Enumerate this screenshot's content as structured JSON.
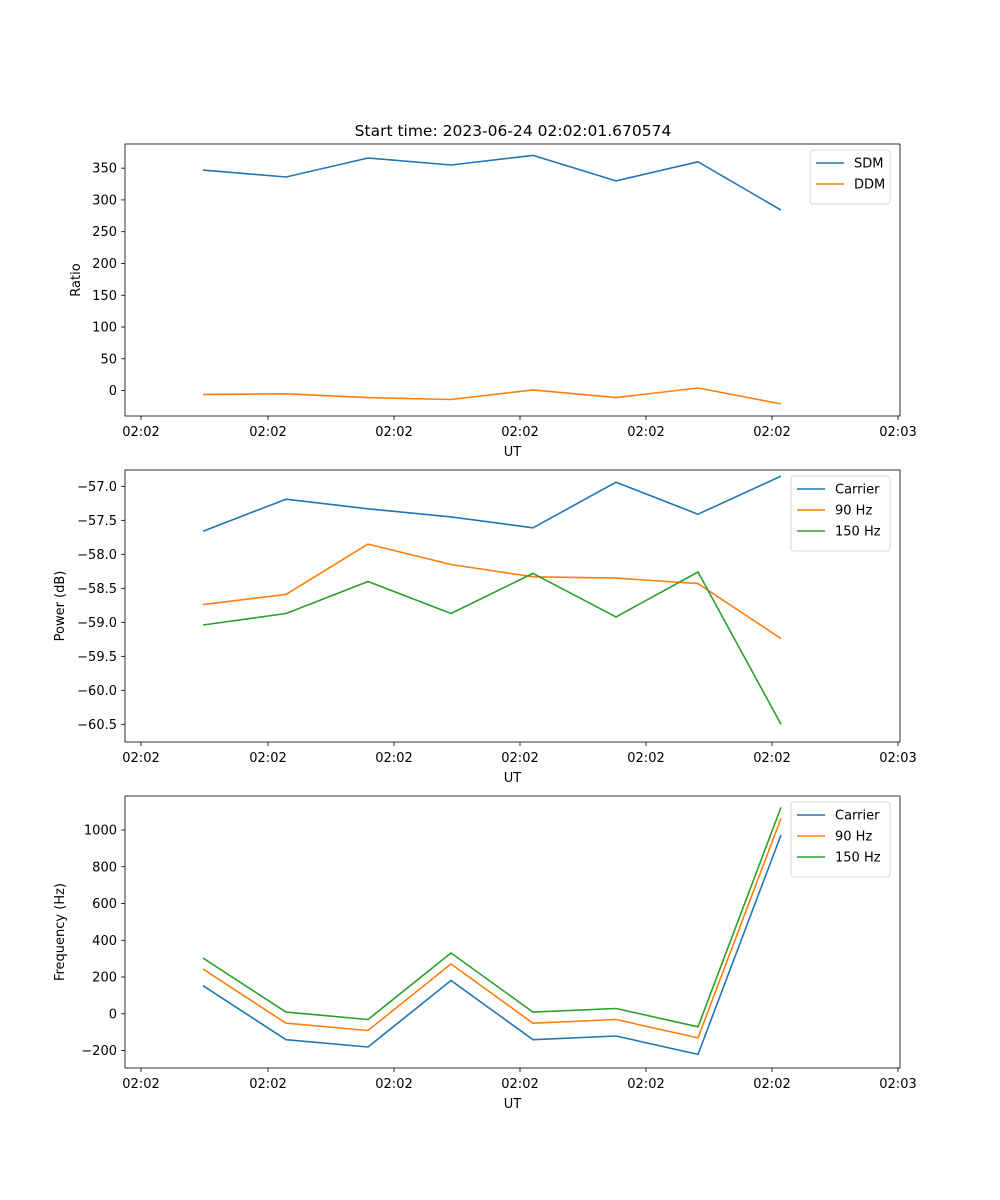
{
  "figure": {
    "title": "Start time: 2023-06-24 02:02:01.670574"
  },
  "chart_data": [
    {
      "type": "line",
      "xlabel": "UT",
      "ylabel": "Ratio",
      "x_tick_labels": [
        "02:02",
        "02:02",
        "02:02",
        "02:02",
        "02:02",
        "02:02",
        "02:03"
      ],
      "ylim": [
        -40,
        388
      ],
      "y_ticks": [
        0,
        50,
        100,
        150,
        200,
        250,
        300,
        350
      ],
      "legend_position": "top-right",
      "series": [
        {
          "name": "SDM",
          "color": "#1f77b4",
          "values": [
            347,
            336,
            366,
            355,
            370,
            330,
            360,
            284
          ]
        },
        {
          "name": "DDM",
          "color": "#ff7f0e",
          "values": [
            -6,
            -5,
            -11,
            -14,
            1,
            -11,
            4,
            -21
          ]
        }
      ]
    },
    {
      "type": "line",
      "xlabel": "UT",
      "ylabel": "Power (dB)",
      "x_tick_labels": [
        "02:02",
        "02:02",
        "02:02",
        "02:02",
        "02:02",
        "02:02",
        "02:03"
      ],
      "ylim": [
        -60.76,
        -56.76
      ],
      "y_ticks": [
        -57.0,
        -57.5,
        -58.0,
        -58.5,
        -59.0,
        -59.5,
        -60.0,
        -60.5
      ],
      "y_tick_labels": [
        "−57.0",
        "−57.5",
        "−58.0",
        "−58.5",
        "−59.0",
        "−59.5",
        "−60.0",
        "−60.5"
      ],
      "legend_position": "top-right",
      "series": [
        {
          "name": "Carrier",
          "color": "#1f77b4",
          "values": [
            -57.66,
            -57.19,
            -57.33,
            -57.45,
            -57.61,
            -56.94,
            -57.41,
            -56.85
          ]
        },
        {
          "name": "90 Hz",
          "color": "#ff7f0e",
          "values": [
            -58.74,
            -58.59,
            -57.85,
            -58.15,
            -58.33,
            -58.35,
            -58.43,
            -59.24
          ]
        },
        {
          "name": "150 Hz",
          "color": "#2ca02c",
          "values": [
            -59.04,
            -58.87,
            -58.4,
            -58.87,
            -58.28,
            -58.92,
            -58.26,
            -60.5
          ]
        }
      ]
    },
    {
      "type": "line",
      "xlabel": "UT",
      "ylabel": "Frequency (Hz)",
      "x_tick_labels": [
        "02:02",
        "02:02",
        "02:02",
        "02:02",
        "02:02",
        "02:02",
        "02:03"
      ],
      "ylim": [
        -295,
        1185
      ],
      "y_ticks": [
        -200,
        0,
        200,
        400,
        600,
        800,
        1000
      ],
      "y_tick_labels": [
        "−200",
        "0",
        "200",
        "400",
        "600",
        "800",
        "1000"
      ],
      "legend_position": "top-right",
      "series": [
        {
          "name": "Carrier",
          "color": "#1f77b4",
          "values": [
            153,
            -141,
            -181,
            181,
            -141,
            -121,
            -221,
            973
          ]
        },
        {
          "name": "90 Hz",
          "color": "#ff7f0e",
          "values": [
            243,
            -51,
            -91,
            271,
            -51,
            -31,
            -131,
            1063
          ]
        },
        {
          "name": "150 Hz",
          "color": "#2ca02c",
          "values": [
            303,
            9,
            -31,
            331,
            9,
            29,
            -71,
            1123
          ]
        }
      ]
    }
  ]
}
